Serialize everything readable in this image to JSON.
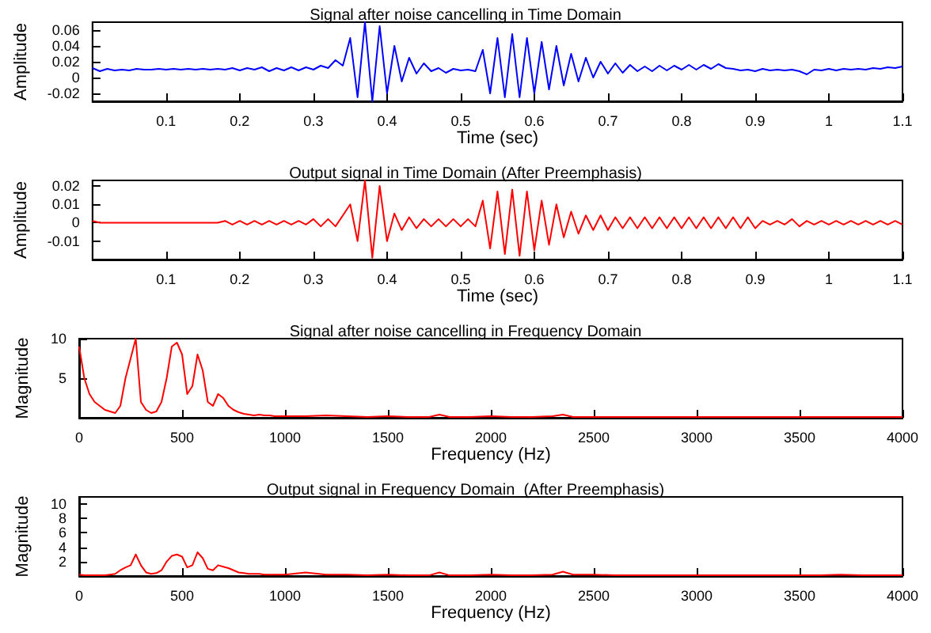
{
  "chart_data": [
    {
      "type": "line",
      "title": "Signal after noise cancelling in Time Domain",
      "xlabel": "Time (sec)",
      "ylabel": "Amplitude",
      "color": "#0000ff",
      "marker": "none",
      "line_style": "solid",
      "grid": false,
      "xlim": [
        0,
        1.1
      ],
      "xticks": [
        0.1,
        0.2,
        0.3,
        0.4,
        0.5,
        0.6,
        0.7,
        0.8,
        0.9,
        1,
        1.1
      ],
      "ylim": [
        -0.03,
        0.07
      ],
      "yticks": [
        -0.02,
        0,
        0.02,
        0.04,
        0.06
      ],
      "x": [
        0,
        0.01,
        0.02,
        0.03,
        0.04,
        0.05,
        0.06,
        0.07,
        0.08,
        0.09,
        0.1,
        0.11,
        0.12,
        0.13,
        0.14,
        0.15,
        0.16,
        0.17,
        0.18,
        0.19,
        0.2,
        0.21,
        0.22,
        0.23,
        0.24,
        0.25,
        0.26,
        0.27,
        0.28,
        0.29,
        0.3,
        0.31,
        0.32,
        0.33,
        0.34,
        0.35,
        0.36,
        0.37,
        0.38,
        0.39,
        0.4,
        0.41,
        0.42,
        0.43,
        0.44,
        0.45,
        0.46,
        0.47,
        0.48,
        0.49,
        0.5,
        0.51,
        0.52,
        0.53,
        0.54,
        0.55,
        0.56,
        0.57,
        0.58,
        0.59,
        0.6,
        0.61,
        0.62,
        0.63,
        0.64,
        0.65,
        0.66,
        0.67,
        0.68,
        0.69,
        0.7,
        0.71,
        0.72,
        0.73,
        0.74,
        0.75,
        0.76,
        0.77,
        0.78,
        0.79,
        0.8,
        0.81,
        0.82,
        0.83,
        0.84,
        0.85,
        0.86,
        0.87,
        0.88,
        0.89,
        0.9,
        0.91,
        0.92,
        0.93,
        0.94,
        0.95,
        0.96,
        0.97,
        0.98,
        0.99,
        1,
        1.01,
        1.02,
        1.03,
        1.04,
        1.05,
        1.06,
        1.07,
        1.08,
        1.09,
        1.1
      ],
      "values": [
        0.012,
        0.008,
        0.011,
        0.009,
        0.01,
        0.009,
        0.011,
        0.01,
        0.01,
        0.011,
        0.01,
        0.011,
        0.01,
        0.011,
        0.01,
        0.011,
        0.01,
        0.011,
        0.01,
        0.012,
        0.009,
        0.012,
        0.01,
        0.013,
        0.008,
        0.012,
        0.009,
        0.013,
        0.009,
        0.013,
        0.01,
        0.015,
        0.012,
        0.022,
        0.015,
        0.05,
        -0.025,
        0.07,
        -0.03,
        0.065,
        -0.02,
        0.04,
        -0.005,
        0.025,
        0.005,
        0.018,
        0.008,
        0.012,
        0.006,
        0.011,
        0.009,
        0.01,
        0.008,
        0.035,
        -0.02,
        0.05,
        -0.025,
        0.055,
        -0.025,
        0.05,
        -0.02,
        0.045,
        -0.015,
        0.04,
        -0.01,
        0.03,
        -0.005,
        0.025,
        0.0,
        0.02,
        0.005,
        0.018,
        0.006,
        0.016,
        0.008,
        0.014,
        0.008,
        0.015,
        0.009,
        0.015,
        0.01,
        0.016,
        0.01,
        0.016,
        0.011,
        0.017,
        0.012,
        0.011,
        0.009,
        0.01,
        0.008,
        0.011,
        0.009,
        0.01,
        0.009,
        0.01,
        0.008,
        0.004,
        0.01,
        0.009,
        0.011,
        0.009,
        0.011,
        0.01,
        0.011,
        0.01,
        0.012,
        0.011,
        0.013,
        0.012,
        0.014
      ]
    },
    {
      "type": "line",
      "title": "Output signal in Time Domain (After Preemphasis)",
      "xlabel": "Time (sec)",
      "ylabel": "Amplitude",
      "color": "#ff0000",
      "marker": "none",
      "line_style": "solid",
      "grid": false,
      "xlim": [
        0,
        1.1
      ],
      "xticks": [
        0.1,
        0.2,
        0.3,
        0.4,
        0.5,
        0.6,
        0.7,
        0.8,
        0.9,
        1,
        1.1
      ],
      "ylim": [
        -0.02,
        0.023
      ],
      "yticks": [
        -0.01,
        0,
        0.01,
        0.02
      ],
      "x": [
        0,
        0.01,
        0.02,
        0.03,
        0.04,
        0.05,
        0.06,
        0.07,
        0.08,
        0.09,
        0.1,
        0.11,
        0.12,
        0.13,
        0.14,
        0.15,
        0.16,
        0.17,
        0.18,
        0.19,
        0.2,
        0.21,
        0.22,
        0.23,
        0.24,
        0.25,
        0.26,
        0.27,
        0.28,
        0.29,
        0.3,
        0.31,
        0.32,
        0.33,
        0.34,
        0.35,
        0.36,
        0.37,
        0.38,
        0.39,
        0.4,
        0.41,
        0.42,
        0.43,
        0.44,
        0.45,
        0.46,
        0.47,
        0.48,
        0.49,
        0.5,
        0.51,
        0.52,
        0.53,
        0.54,
        0.55,
        0.56,
        0.57,
        0.58,
        0.59,
        0.6,
        0.61,
        0.62,
        0.63,
        0.64,
        0.65,
        0.66,
        0.67,
        0.68,
        0.69,
        0.7,
        0.71,
        0.72,
        0.73,
        0.74,
        0.75,
        0.76,
        0.77,
        0.78,
        0.79,
        0.8,
        0.81,
        0.82,
        0.83,
        0.84,
        0.85,
        0.86,
        0.87,
        0.88,
        0.89,
        0.9,
        0.91,
        0.92,
        0.93,
        0.94,
        0.95,
        0.96,
        0.97,
        0.98,
        0.99,
        1,
        1.01,
        1.02,
        1.03,
        1.04,
        1.05,
        1.06,
        1.07,
        1.08,
        1.09,
        1.1
      ],
      "values": [
        0.001,
        0,
        0,
        0,
        0,
        0,
        0,
        0,
        0,
        0,
        0,
        0,
        0,
        0,
        0,
        0,
        0,
        0,
        0.001,
        -0.001,
        0.001,
        -0.001,
        0.001,
        -0.001,
        0.001,
        -0.001,
        0.001,
        -0.001,
        0.001,
        -0.001,
        0.002,
        -0.002,
        0.002,
        -0.002,
        0.004,
        0.01,
        -0.01,
        0.023,
        -0.019,
        0.02,
        -0.01,
        0.005,
        -0.004,
        0.003,
        -0.003,
        0.002,
        -0.002,
        0.002,
        -0.002,
        0.002,
        -0.002,
        0.002,
        -0.002,
        0.012,
        -0.014,
        0.017,
        -0.017,
        0.018,
        -0.018,
        0.017,
        -0.015,
        0.012,
        -0.012,
        0.01,
        -0.008,
        0.006,
        -0.006,
        0.004,
        -0.004,
        0.004,
        -0.004,
        0.003,
        -0.003,
        0.003,
        -0.003,
        0.003,
        -0.003,
        0.003,
        -0.003,
        0.003,
        -0.003,
        0.003,
        -0.003,
        0.003,
        -0.003,
        0.003,
        -0.003,
        0.003,
        -0.003,
        0.003,
        -0.003,
        0.001,
        -0.001,
        0.001,
        -0.001,
        0.002,
        -0.002,
        0.001,
        -0.001,
        0.001,
        -0.001,
        0.001,
        -0.001,
        0.001,
        -0.001,
        0.001,
        -0.001,
        0.001,
        -0.001,
        0.001,
        -0.001
      ]
    },
    {
      "type": "line",
      "title": "Signal after noise cancelling in Frequency Domain",
      "xlabel": "Frequency (Hz)",
      "ylabel": "Magnitude",
      "color": "#ff0000",
      "marker": "none",
      "line_style": "solid",
      "grid": false,
      "xlim": [
        0,
        4000
      ],
      "xticks": [
        0,
        500,
        1000,
        1500,
        2000,
        2500,
        3000,
        3500,
        4000
      ],
      "ylim": [
        0,
        10
      ],
      "yticks": [
        5,
        10
      ],
      "x": [
        0,
        25,
        50,
        75,
        100,
        125,
        150,
        175,
        200,
        225,
        250,
        275,
        300,
        325,
        350,
        375,
        400,
        425,
        450,
        475,
        500,
        525,
        550,
        575,
        600,
        625,
        650,
        675,
        700,
        725,
        750,
        775,
        800,
        825,
        850,
        875,
        900,
        925,
        950,
        975,
        1000,
        1100,
        1200,
        1300,
        1400,
        1500,
        1600,
        1700,
        1750,
        1800,
        1900,
        2000,
        2100,
        2200,
        2300,
        2350,
        2400,
        2500,
        2600,
        2700,
        2800,
        2900,
        3000,
        3100,
        3200,
        3300,
        3400,
        3500,
        3600,
        3700,
        3800,
        3900,
        4000
      ],
      "values": [
        9,
        5,
        3,
        2,
        1.5,
        1,
        0.8,
        0.6,
        1.5,
        5,
        7.5,
        10,
        2,
        1,
        0.6,
        0.8,
        2,
        5,
        9,
        9.5,
        8,
        3,
        4,
        8,
        6,
        2,
        1.5,
        3,
        2.5,
        1.5,
        1,
        0.7,
        0.5,
        0.4,
        0.3,
        0.4,
        0.3,
        0.3,
        0.2,
        0.2,
        0.2,
        0.2,
        0.3,
        0.2,
        0.1,
        0.2,
        0.1,
        0.1,
        0.4,
        0.1,
        0.1,
        0.2,
        0.1,
        0.1,
        0.2,
        0.4,
        0.1,
        0.1,
        0.1,
        0.1,
        0.1,
        0.1,
        0.1,
        0.1,
        0.1,
        0.1,
        0.1,
        0.1,
        0.1,
        0.1,
        0.1,
        0.1,
        0.1
      ]
    },
    {
      "type": "line",
      "title": "Output signal in Frequency Domain  (After Preemphasis)",
      "xlabel": "Frequency (Hz)",
      "ylabel": "Magnitude",
      "color": "#ff0000",
      "marker": "none",
      "line_style": "solid",
      "grid": false,
      "xlim": [
        0,
        4000
      ],
      "xticks": [
        0,
        500,
        1000,
        1500,
        2000,
        2500,
        3000,
        3500,
        4000
      ],
      "ylim": [
        0,
        11
      ],
      "yticks": [
        2,
        4,
        6,
        8,
        10
      ],
      "x": [
        0,
        25,
        50,
        75,
        100,
        125,
        150,
        175,
        200,
        225,
        250,
        275,
        300,
        325,
        350,
        375,
        400,
        425,
        450,
        475,
        500,
        525,
        550,
        575,
        600,
        625,
        650,
        675,
        700,
        725,
        750,
        775,
        800,
        825,
        850,
        875,
        900,
        925,
        950,
        975,
        1000,
        1100,
        1200,
        1300,
        1400,
        1500,
        1600,
        1700,
        1750,
        1800,
        1900,
        2000,
        2100,
        2200,
        2300,
        2350,
        2400,
        2500,
        2600,
        2700,
        2800,
        2900,
        3000,
        3100,
        3200,
        3300,
        3400,
        3500,
        3600,
        3700,
        3800,
        3900,
        4000
      ],
      "values": [
        0.2,
        0.1,
        0.1,
        0.1,
        0.1,
        0.1,
        0.2,
        0.3,
        0.8,
        1.2,
        1.5,
        3,
        1.5,
        0.5,
        0.3,
        0.4,
        0.8,
        2,
        2.8,
        3,
        2.7,
        1.2,
        1.5,
        3.3,
        2.5,
        1,
        0.8,
        1.5,
        1.3,
        1.1,
        0.8,
        0.5,
        0.4,
        0.3,
        0.3,
        0.3,
        0.2,
        0.2,
        0.2,
        0.2,
        0.2,
        0.5,
        0.2,
        0.2,
        0.1,
        0.2,
        0.1,
        0.1,
        0.5,
        0.1,
        0.1,
        0.2,
        0.1,
        0.1,
        0.2,
        0.6,
        0.2,
        0.2,
        0.1,
        0.1,
        0.1,
        0.1,
        0.1,
        0.1,
        0.1,
        0.1,
        0.1,
        0.1,
        0.1,
        0.2,
        0.1,
        0.1,
        0.1
      ]
    }
  ]
}
